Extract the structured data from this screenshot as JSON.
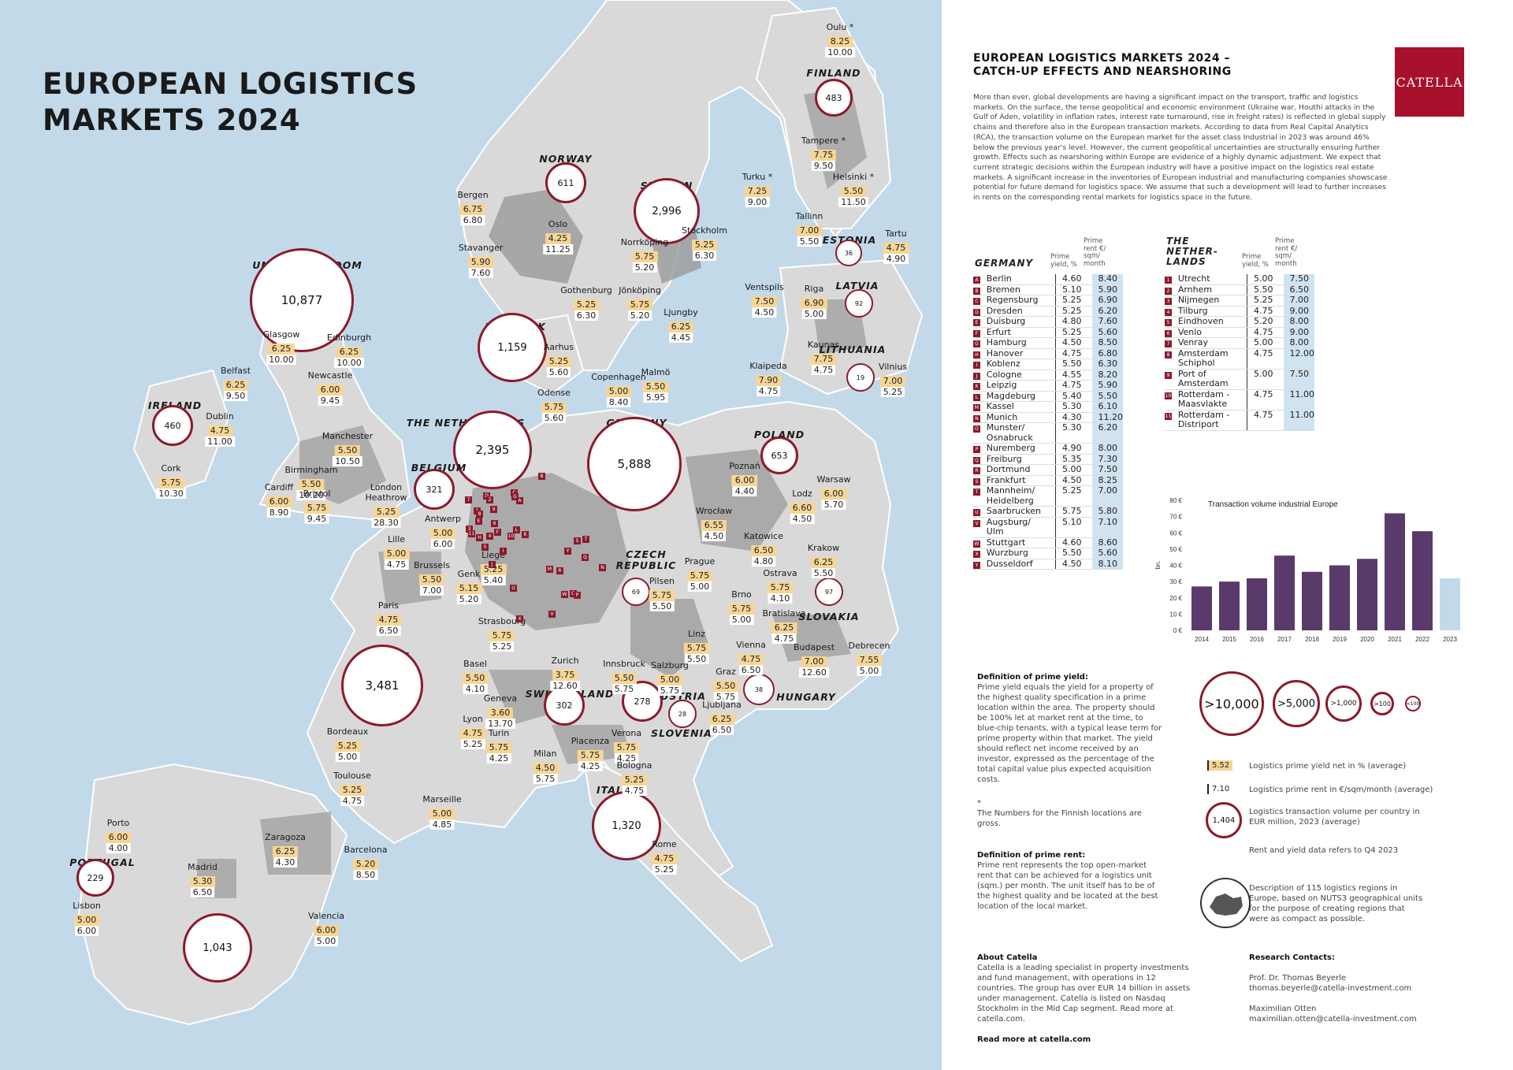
{
  "map": {
    "title": "EUROPEAN LOGISTICS\nMARKETS 2024",
    "countries": [
      {
        "id": "finland",
        "label": "FINLAND",
        "volume": "483"
      },
      {
        "id": "norway",
        "label": "NORWAY",
        "volume": "611"
      },
      {
        "id": "sweden",
        "label": "SWEDEN",
        "volume": "2,996"
      },
      {
        "id": "estonia",
        "label": "ESTONIA",
        "volume": "36"
      },
      {
        "id": "latvia",
        "label": "LATVIA",
        "volume": "92"
      },
      {
        "id": "lithuania",
        "label": "LITHUANIA",
        "volume": "19"
      },
      {
        "id": "uk",
        "label": "UNITED KINGDOM",
        "volume": "10,877"
      },
      {
        "id": "denmark",
        "label": "DENMARK",
        "volume": "1,159"
      },
      {
        "id": "ireland",
        "label": "IRELAND",
        "volume": "460"
      },
      {
        "id": "netherlands",
        "label": "THE NETHERLANDS",
        "volume": "2,395"
      },
      {
        "id": "germany",
        "label": "GERMANY",
        "volume": "5,888"
      },
      {
        "id": "poland",
        "label": "POLAND",
        "volume": "653"
      },
      {
        "id": "belgium",
        "label": "BELGIUM",
        "volume": "321"
      },
      {
        "id": "czech",
        "label": "CZECH\nREPUBLIC",
        "volume": "69"
      },
      {
        "id": "slovakia",
        "label": "SLOVAKIA",
        "volume": "97"
      },
      {
        "id": "france",
        "label": "FRANCE",
        "volume": "3,481"
      },
      {
        "id": "switzerland",
        "label": "SWITZERLAND",
        "volume": "302"
      },
      {
        "id": "austria",
        "label": "AUSTRIA",
        "volume": "278"
      },
      {
        "id": "hungary",
        "label": "HUNGARY",
        "volume": "38"
      },
      {
        "id": "slovenia",
        "label": "SLOVENIA",
        "volume": "28"
      },
      {
        "id": "italy",
        "label": "ITALY",
        "volume": "1,320"
      },
      {
        "id": "portugal",
        "label": "PORTUGAL",
        "volume": "229"
      },
      {
        "id": "spain",
        "label": "SPAIN",
        "volume": "1,043"
      }
    ],
    "cities": [
      {
        "name": "Oulu *",
        "yield": "8.25",
        "rent": "10.00"
      },
      {
        "name": "Tampere *",
        "yield": "7.75",
        "rent": "9.50"
      },
      {
        "name": "Turku *",
        "yield": "7.25",
        "rent": "9.00"
      },
      {
        "name": "Helsinki *",
        "yield": "5.50",
        "rent": "11.50"
      },
      {
        "name": "Tallinn",
        "yield": "7.00",
        "rent": "5.50"
      },
      {
        "name": "Tartu",
        "yield": "4.75",
        "rent": "4.90"
      },
      {
        "name": "Bergen",
        "yield": "6.75",
        "rent": "6.80"
      },
      {
        "name": "Stavanger",
        "yield": "5.90",
        "rent": "7.60"
      },
      {
        "name": "Oslo",
        "yield": "4.25",
        "rent": "11.25"
      },
      {
        "name": "Norrköping",
        "yield": "5.75",
        "rent": "5.20"
      },
      {
        "name": "Stockholm",
        "yield": "5.25",
        "rent": "6.30"
      },
      {
        "name": "Gothenburg",
        "yield": "5.25",
        "rent": "6.30"
      },
      {
        "name": "Jönköping",
        "yield": "5.75",
        "rent": "5.20"
      },
      {
        "name": "Ljungby",
        "yield": "6.25",
        "rent": "4.45"
      },
      {
        "name": "Ventspils",
        "yield": "7.50",
        "rent": "4.50"
      },
      {
        "name": "Riga",
        "yield": "6.90",
        "rent": "5.00"
      },
      {
        "name": "Kaunas",
        "yield": "7.75",
        "rent": "4.75"
      },
      {
        "name": "Klaipeda",
        "yield": "7.90",
        "rent": "4.75"
      },
      {
        "name": "Vilnius",
        "yield": "7.00",
        "rent": "5.25"
      },
      {
        "name": "Glasgow",
        "yield": "6.25",
        "rent": "10.00"
      },
      {
        "name": "Edinburgh",
        "yield": "6.25",
        "rent": "10.00"
      },
      {
        "name": "Belfast",
        "yield": "6.25",
        "rent": "9.50"
      },
      {
        "name": "Newcastle",
        "yield": "6.00",
        "rent": "9.45"
      },
      {
        "name": "Dublin",
        "yield": "4.75",
        "rent": "11.00"
      },
      {
        "name": "Manchester",
        "yield": "5.50",
        "rent": "10.50"
      },
      {
        "name": "Cork",
        "yield": "5.75",
        "rent": "10.30"
      },
      {
        "name": "Birmingham",
        "yield": "5.50",
        "rent": "10.20"
      },
      {
        "name": "Cardiff",
        "yield": "6.00",
        "rent": "8.90"
      },
      {
        "name": "Bristol",
        "yield": "5.75",
        "rent": "9.45"
      },
      {
        "name": "London\nHeathrow",
        "yield": "5.25",
        "rent": "28.30"
      },
      {
        "name": "Aarhus",
        "yield": "5.25",
        "rent": "5.60"
      },
      {
        "name": "Copenhagen",
        "yield": "5.00",
        "rent": "8.40"
      },
      {
        "name": "Malmö",
        "yield": "5.50",
        "rent": "5.95"
      },
      {
        "name": "Odense",
        "yield": "5.75",
        "rent": "5.60"
      },
      {
        "name": "Antwerp",
        "yield": "5.00",
        "rent": "6.00"
      },
      {
        "name": "Lille",
        "yield": "5.00",
        "rent": "4.75"
      },
      {
        "name": "Brussels",
        "yield": "5.50",
        "rent": "7.00"
      },
      {
        "name": "Liege",
        "yield": "5.25",
        "rent": "5.40"
      },
      {
        "name": "Genk",
        "yield": "5.15",
        "rent": "5.20"
      },
      {
        "name": "Paris",
        "yield": "4.75",
        "rent": "6.50"
      },
      {
        "name": "Poznań",
        "yield": "6.00",
        "rent": "4.40"
      },
      {
        "name": "Lodz",
        "yield": "6.60",
        "rent": "4.50"
      },
      {
        "name": "Warsaw",
        "yield": "6.00",
        "rent": "5.70"
      },
      {
        "name": "Wrocław",
        "yield": "6.55",
        "rent": "4.50"
      },
      {
        "name": "Katowice",
        "yield": "6.50",
        "rent": "4.80"
      },
      {
        "name": "Krakow",
        "yield": "6.25",
        "rent": "5.50"
      },
      {
        "name": "Prague",
        "yield": "5.75",
        "rent": "5.00"
      },
      {
        "name": "Ostrava",
        "yield": "5.75",
        "rent": "4.10"
      },
      {
        "name": "Pilsen",
        "yield": "5.75",
        "rent": "5.50"
      },
      {
        "name": "Brno",
        "yield": "5.75",
        "rent": "5.00"
      },
      {
        "name": "Bratislava",
        "yield": "6.25",
        "rent": "4.75"
      },
      {
        "name": "Strasbourg",
        "yield": "5.75",
        "rent": "5.25"
      },
      {
        "name": "Basel",
        "yield": "5.50",
        "rent": "4.10"
      },
      {
        "name": "Zurich",
        "yield": "3.75",
        "rent": "12.60"
      },
      {
        "name": "Linz",
        "yield": "5.75",
        "rent": "5.50"
      },
      {
        "name": "Vienna",
        "yield": "4.75",
        "rent": "6.50"
      },
      {
        "name": "Budapest",
        "yield": "7.00",
        "rent": "12.60"
      },
      {
        "name": "Debrecen",
        "yield": "7.55",
        "rent": "5.00"
      },
      {
        "name": "Innsbruck",
        "yield": "5.50",
        "rent": "5.75"
      },
      {
        "name": "Salzburg",
        "yield": "5.00",
        "rent": "5.75"
      },
      {
        "name": "Graz",
        "yield": "5.50",
        "rent": "5.75"
      },
      {
        "name": "Ljubljana",
        "yield": "6.25",
        "rent": "6.50"
      },
      {
        "name": "Geneva",
        "yield": "3.60",
        "rent": "13.70"
      },
      {
        "name": "Lyon",
        "yield": "4.75",
        "rent": "5.25"
      },
      {
        "name": "Turin",
        "yield": "5.75",
        "rent": "4.25"
      },
      {
        "name": "Milan",
        "yield": "4.50",
        "rent": "5.75"
      },
      {
        "name": "Piacenza",
        "yield": "5.75",
        "rent": "4.25"
      },
      {
        "name": "Verona",
        "yield": "5.75",
        "rent": "4.25"
      },
      {
        "name": "Bologna",
        "yield": "5.25",
        "rent": "4.75"
      },
      {
        "name": "Bordeaux",
        "yield": "5.25",
        "rent": "5.00"
      },
      {
        "name": "Toulouse",
        "yield": "5.25",
        "rent": "4.75"
      },
      {
        "name": "Marseille",
        "yield": "5.00",
        "rent": "4.85"
      },
      {
        "name": "Rome",
        "yield": "4.75",
        "rent": "5.25"
      },
      {
        "name": "Porto",
        "yield": "6.00",
        "rent": "4.00"
      },
      {
        "name": "Zaragoza",
        "yield": "6.25",
        "rent": "4.30"
      },
      {
        "name": "Barcelona",
        "yield": "5.20",
        "rent": "8.50"
      },
      {
        "name": "Madrid",
        "yield": "5.30",
        "rent": "6.50"
      },
      {
        "name": "Lisbon",
        "yield": "5.00",
        "rent": "6.00"
      },
      {
        "name": "Valencia",
        "yield": "6.00",
        "rent": "5.00"
      }
    ],
    "markers_germany": [
      "A",
      "B",
      "C",
      "D",
      "E",
      "F",
      "G",
      "H",
      "I",
      "J",
      "K",
      "L",
      "M",
      "N",
      "O",
      "P",
      "Q",
      "R",
      "S",
      "T",
      "U",
      "V",
      "W",
      "X",
      "Y"
    ],
    "markers_nl": [
      "1",
      "2",
      "3",
      "4",
      "5",
      "6",
      "7",
      "8",
      "9",
      "10",
      "11"
    ]
  },
  "panel": {
    "title": "EUROPEAN LOGISTICS MARKETS 2024 –\nCATCH-UP EFFECTS AND NEARSHORING",
    "logo": "CATELLA",
    "intro": "More than ever, global developments are having a significant impact on the transport, traffic and logistics markets. On the surface, the tense geopolitical and economic environment (Ukraine war, Houthi attacks in the Gulf of Aden, volatility in inflation rates, interest rate turnaround, rise in freight rates) is reflected in global supply chains and therefore also in the European transaction markets. According to data from Real Capital Analytics (RCA), the transaction volume on the European market for the asset class Industrial in 2023 was around 46% below the previous year's level. However, the current geopolitical uncertainties are structurally ensuring further growth. Effects such as nearshoring within Europe are evidence of a highly dynamic adjustment. We expect that current strategic decisions within the European industry will have a positive impact on the logistics real estate markets. A significant increase in the inventories of European industrial and manufacturing companies showscase potential for future demand for logistics space. We assume that such a development will lead to further increases in rents on the corresponding rental markets for logistics space in the future.",
    "germany_table": {
      "name": "GERMANY",
      "h_yield": "Prime\nyield, %",
      "h_rent": "Prime\nrent €/\nsqm/\nmonth",
      "rows": [
        {
          "l": "A",
          "city": "Berlin",
          "y": "4.60",
          "r": "8.40"
        },
        {
          "l": "B",
          "city": "Bremen",
          "y": "5.10",
          "r": "5.90"
        },
        {
          "l": "C",
          "city": "Regensburg",
          "y": "5.25",
          "r": "6.90"
        },
        {
          "l": "D",
          "city": "Dresden",
          "y": "5.25",
          "r": "6.20"
        },
        {
          "l": "E",
          "city": "Duisburg",
          "y": "4.80",
          "r": "7.60"
        },
        {
          "l": "F",
          "city": "Erfurt",
          "y": "5.25",
          "r": "5.60"
        },
        {
          "l": "G",
          "city": "Hamburg",
          "y": "4.50",
          "r": "8.50"
        },
        {
          "l": "H",
          "city": "Hanover",
          "y": "4.75",
          "r": "6.80"
        },
        {
          "l": "I",
          "city": "Koblenz",
          "y": "5.50",
          "r": "6.30"
        },
        {
          "l": "J",
          "city": "Cologne",
          "y": "4.55",
          "r": "8.20"
        },
        {
          "l": "K",
          "city": "Leipzig",
          "y": "4.75",
          "r": "5.90"
        },
        {
          "l": "L",
          "city": "Magdeburg",
          "y": "5.40",
          "r": "5.50"
        },
        {
          "l": "M",
          "city": "Kassel",
          "y": "5.30",
          "r": "6.10"
        },
        {
          "l": "N",
          "city": "Munich",
          "y": "4.30",
          "r": "11.20"
        },
        {
          "l": "O",
          "city": "Munster/\nOsnabruck",
          "y": "5.30",
          "r": "6.20"
        },
        {
          "l": "P",
          "city": "Nuremberg",
          "y": "4.90",
          "r": "8.00"
        },
        {
          "l": "Q",
          "city": "Freiburg",
          "y": "5.35",
          "r": "7.30"
        },
        {
          "l": "R",
          "city": "Dortmund",
          "y": "5.00",
          "r": "7.50"
        },
        {
          "l": "S",
          "city": "Frankfurt",
          "y": "4.50",
          "r": "8.25"
        },
        {
          "l": "T",
          "city": "Mannheim/\nHeidelberg",
          "y": "5.25",
          "r": "7.00"
        },
        {
          "l": "U",
          "city": "Saarbrucken",
          "y": "5.75",
          "r": "5.80"
        },
        {
          "l": "V",
          "city": "Augsburg/\nUlm",
          "y": "5.10",
          "r": "7.10"
        },
        {
          "l": "W",
          "city": "Stuttgart",
          "y": "4.60",
          "r": "8.60"
        },
        {
          "l": "X",
          "city": "Wurzburg",
          "y": "5.50",
          "r": "5.60"
        },
        {
          "l": "Y",
          "city": "Dusseldorf",
          "y": "4.50",
          "r": "8.10"
        }
      ]
    },
    "nl_table": {
      "name": "THE\nNETHER-\nLANDS",
      "h_yield": "Prime\nyield, %",
      "h_rent": "Prime\nrent €/\nsqm/\nmonth",
      "rows": [
        {
          "l": "1",
          "city": "Utrecht",
          "y": "5.00",
          "r": "7.50"
        },
        {
          "l": "2",
          "city": "Arnhem",
          "y": "5.50",
          "r": "6.50"
        },
        {
          "l": "3",
          "city": "Nijmegen",
          "y": "5.25",
          "r": "7.00"
        },
        {
          "l": "4",
          "city": "Tilburg",
          "y": "4.75",
          "r": "9.00"
        },
        {
          "l": "5",
          "city": "Eindhoven",
          "y": "5.20",
          "r": "8.00"
        },
        {
          "l": "6",
          "city": "Venlo",
          "y": "4.75",
          "r": "9.00"
        },
        {
          "l": "7",
          "city": "Venray",
          "y": "5.00",
          "r": "8.00"
        },
        {
          "l": "8",
          "city": "Amsterdam\nSchiphol",
          "y": "4.75",
          "r": "12.00"
        },
        {
          "l": "9",
          "city": "Port of\nAmsterdam",
          "y": "5.00",
          "r": "7.50"
        },
        {
          "l": "10",
          "city": "Rotterdam -\nMaasvlakte",
          "y": "4.75",
          "r": "11.00"
        },
        {
          "l": "11",
          "city": "Rotterdam -\nDistriport",
          "y": "4.75",
          "r": "11.00"
        }
      ]
    },
    "definition_yield": {
      "title": "Definition of prime yield:",
      "text": "Prime yield equals the yield for a property of the highest quality specification in a prime location within the area. The property should be 100% let at market rent at the time, to blue-chip tenants, with a typical lease term for prime property within that market. The yield should reflect net income received by an investor, expressed as the percentage of the total capital value plus expected acquisition costs."
    },
    "finnish_note": {
      "star": "*",
      "text": "The Numbers for the Finnish locations are gross."
    },
    "definition_rent": {
      "title": "Definition of prime rent:",
      "text": "Prime rent represents the top open-market rent that can be achieved for a logistics unit (sqm.) per month. The unit itself has to be of the highest quality and be located at the best location of the local market."
    },
    "about": {
      "title": "About Catella",
      "text": "Catella is a leading specialist in property investments and fund management, with operations in 12 countries. The group has over EUR 14 billion in assets under management. Catella is listed on Nasdaq Stockholm in the Mid Cap segment. Read more at catella.com.",
      "link": "Read more at catella.com"
    },
    "legend": {
      "sizes": [
        ">10,000",
        ">5,000",
        ">1,000",
        ">100",
        "<100"
      ],
      "yield_example": "5.52",
      "yield_label": "Logistics prime yield net in % (average)",
      "rent_example": "7.10",
      "rent_label": "Logistics prime rent in €/sqm/month (average)",
      "volume_example": "1,404",
      "volume_label": "Logistics transaction volume per country in EUR million, 2023 (average)",
      "date_note": "Rent and yield data refers to Q4 2023",
      "regions_label": "Description of 115 logistics regions in Europe, based on NUTS3 geographical units for the purpose of creating regions that were as compact as possible."
    },
    "contacts": {
      "title": "Research Contacts:",
      "people": [
        {
          "name": "Prof. Dr. Thomas Beyerle",
          "email": "thomas.beyerle@catella-investment.com"
        },
        {
          "name": "Maximilian Otten",
          "email": "maximilian.otten@catella-investment.com"
        }
      ]
    }
  },
  "chart_data": {
    "type": "bar",
    "title": "Transaction volume industrial Europe",
    "ylabel": "bn.",
    "ylim": [
      0,
      80
    ],
    "yticks": [
      "0 €",
      "10 €",
      "20 €",
      "30 €",
      "40 €",
      "50 €",
      "60 €",
      "70 €",
      "80 €"
    ],
    "categories": [
      "2014",
      "2015",
      "2016",
      "2017",
      "2018",
      "2019",
      "2020",
      "2021",
      "2022",
      "2023"
    ],
    "values": [
      27,
      30,
      32,
      46,
      36,
      40,
      44,
      72,
      61,
      32
    ],
    "colors": [
      "#5a3a6b",
      "#5a3a6b",
      "#5a3a6b",
      "#5a3a6b",
      "#5a3a6b",
      "#5a3a6b",
      "#5a3a6b",
      "#5a3a6b",
      "#5a3a6b",
      "#c2d9ea"
    ]
  }
}
